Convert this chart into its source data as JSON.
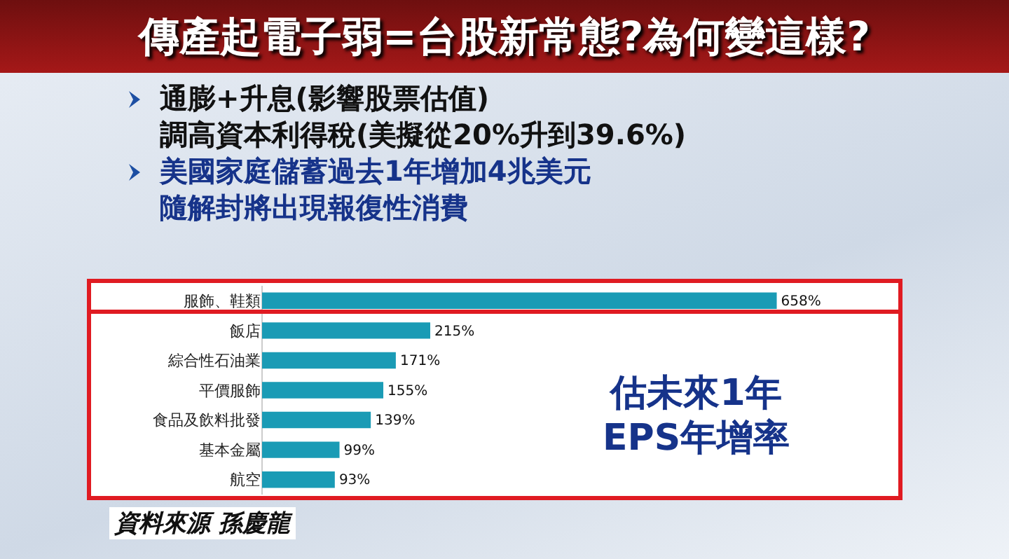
{
  "chart_data": {
    "type": "bar",
    "orientation": "horizontal",
    "title": "傳產起電子弱=台股新常態?為何變這樣?",
    "categories": [
      "服飾、鞋類",
      "飯店",
      "綜合性石油業",
      "平價服飾",
      "食品及飲料批發",
      "基本金屬",
      "航空"
    ],
    "values": [
      658,
      215,
      171,
      155,
      139,
      99,
      93
    ],
    "value_labels": [
      "658%",
      "215%",
      "171%",
      "155%",
      "139%",
      "99%",
      "93%"
    ],
    "color": "#1a9bb5",
    "annotations": [
      "通膨+升息(影響股票估值)",
      "調高資本利得稅(美擬從20%升到39.6%)",
      "美國家庭儲蓄過去1年增加4兆美元",
      "隨解封將出現報復性消費",
      "估未來1年\nEPS年增率",
      "資料來源 孫慶龍"
    ]
  }
}
